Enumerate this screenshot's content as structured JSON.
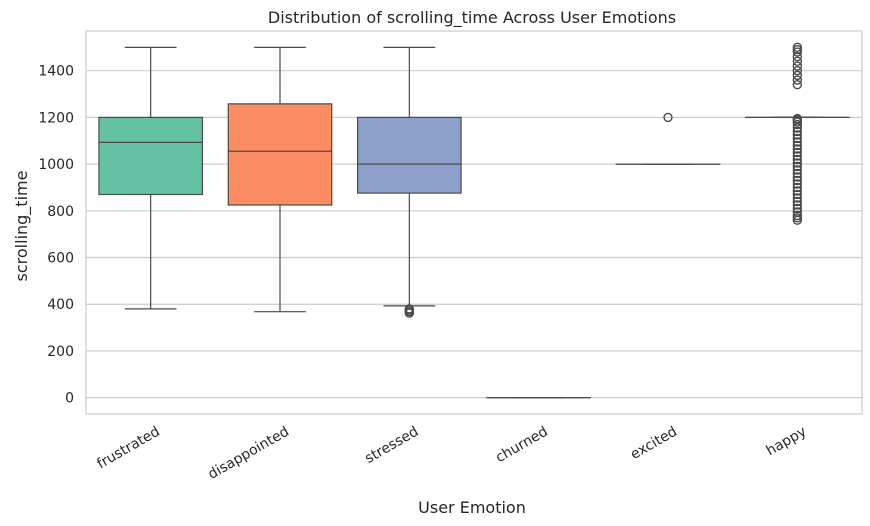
{
  "chart_data": {
    "type": "box",
    "title": "Distribution of scrolling_time Across User Emotions",
    "xlabel": "User Emotion",
    "ylabel": "scrolling_time",
    "ylim": [
      -70,
      1570
    ],
    "yticks": [
      0,
      200,
      400,
      600,
      800,
      1000,
      1200,
      1400
    ],
    "grid": true,
    "categories": [
      "frustrated",
      "disappointed",
      "stressed",
      "churned",
      "excited",
      "happy"
    ],
    "boxes": [
      {
        "category": "frustrated",
        "whisker_low": 380,
        "q1": 870,
        "median": 1093,
        "q3": 1200,
        "whisker_high": 1500,
        "color": "#66c2a5",
        "outliers": []
      },
      {
        "category": "disappointed",
        "whisker_low": 368,
        "q1": 825,
        "median": 1055,
        "q3": 1258,
        "whisker_high": 1500,
        "color": "#fc8d62",
        "outliers": []
      },
      {
        "category": "stressed",
        "whisker_low": 393,
        "q1": 876,
        "median": 1000,
        "q3": 1200,
        "whisker_high": 1500,
        "color": "#8da0cb",
        "outliers": [
          362,
          368,
          375,
          380
        ]
      },
      {
        "category": "churned",
        "whisker_low": 0,
        "q1": 0,
        "median": 0,
        "q3": 0,
        "whisker_high": 0,
        "color": "#e78ac3",
        "outliers": []
      },
      {
        "category": "excited",
        "whisker_low": 1000,
        "q1": 1000,
        "median": 1000,
        "q3": 1000,
        "whisker_high": 1000,
        "color": "#a6d854",
        "outliers": [
          1200
        ]
      },
      {
        "category": "happy",
        "whisker_low": 1200,
        "q1": 1200,
        "median": 1200,
        "q3": 1200,
        "whisker_high": 1200,
        "color": "#ffd92f",
        "outliers": [
          760,
          770,
          780,
          795,
          810,
          825,
          840,
          855,
          870,
          885,
          900,
          915,
          930,
          945,
          960,
          975,
          990,
          1005,
          1020,
          1035,
          1050,
          1065,
          1080,
          1095,
          1110,
          1125,
          1140,
          1155,
          1170,
          1180,
          1190,
          1195,
          1340,
          1360,
          1380,
          1400,
          1420,
          1440,
          1460,
          1480,
          1490,
          1500
        ]
      }
    ]
  }
}
